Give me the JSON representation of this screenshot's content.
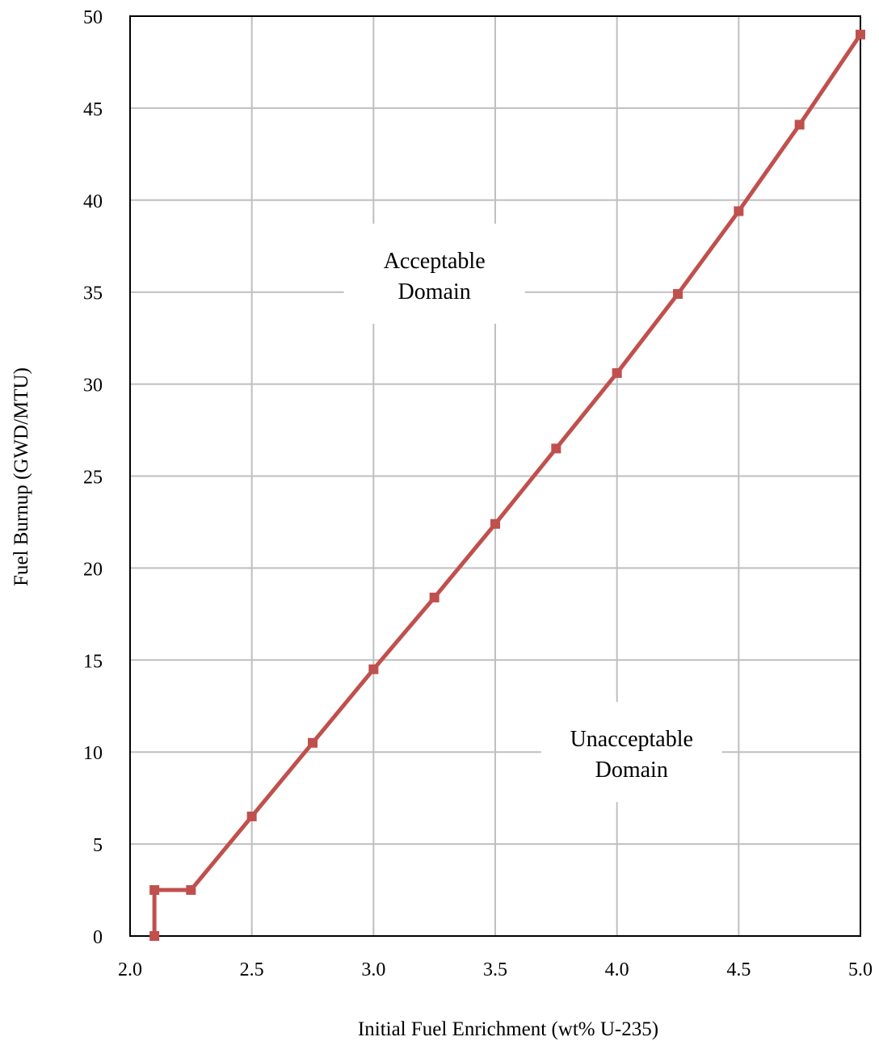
{
  "chart_data": {
    "type": "line",
    "xlabel": "Initial Fuel Enrichment (wt% U-235)",
    "ylabel": "Fuel Burnup (GWD/MTU)",
    "xlim": [
      2.0,
      5.0
    ],
    "ylim": [
      0,
      50
    ],
    "x_ticks": [
      "2.0",
      "2.5",
      "3.0",
      "3.5",
      "4.0",
      "4.5",
      "5.0"
    ],
    "y_ticks": [
      "0",
      "5",
      "10",
      "15",
      "20",
      "25",
      "30",
      "35",
      "40",
      "45",
      "50"
    ],
    "grid": true,
    "series": [
      {
        "color": "#c0504d",
        "marker": "square",
        "x": [
          2.1,
          2.1,
          2.25,
          2.5,
          2.75,
          3.0,
          3.25,
          3.5,
          3.75,
          4.0,
          4.25,
          4.5,
          4.75,
          5.0
        ],
        "y": [
          0,
          2.5,
          2.5,
          6.5,
          10.5,
          14.5,
          18.4,
          22.4,
          26.5,
          30.6,
          34.9,
          39.4,
          44.1,
          49.0
        ]
      }
    ],
    "annotations": [
      {
        "text": [
          "Acceptable",
          "Domain"
        ],
        "x": 3.25,
        "y": 36
      },
      {
        "text": [
          "Unacceptable",
          "Domain"
        ],
        "x": 4.06,
        "y": 10
      }
    ]
  }
}
